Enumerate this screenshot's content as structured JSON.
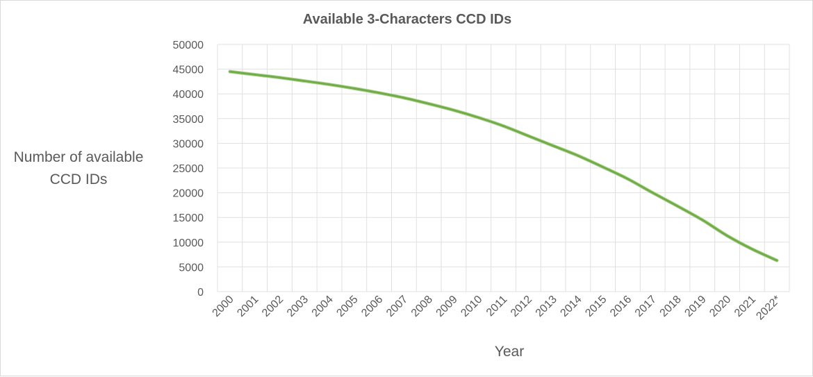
{
  "chart_data": {
    "type": "line",
    "title": "Available 3-Characters CCD IDs",
    "xlabel": "Year",
    "ylabel": [
      "Number of available",
      "CCD IDs"
    ],
    "categories": [
      "2000",
      "2001",
      "2002",
      "2003",
      "2004",
      "2005",
      "2006",
      "2007",
      "2008",
      "2009",
      "2010",
      "2011",
      "2012",
      "2013",
      "2014",
      "2015",
      "2016",
      "2017",
      "2018",
      "2019",
      "2020",
      "2021",
      "2022*"
    ],
    "series": [
      {
        "values": [
          44500,
          43900,
          43300,
          42600,
          41900,
          41100,
          40200,
          39200,
          38000,
          36700,
          35200,
          33500,
          31500,
          29500,
          27500,
          25200,
          22800,
          20000,
          17300,
          14500,
          11300,
          8600,
          6300
        ]
      }
    ],
    "ylim": [
      0,
      50000
    ],
    "yticks": [
      0,
      5000,
      10000,
      15000,
      20000,
      25000,
      30000,
      35000,
      40000,
      45000,
      50000
    ],
    "grid": true,
    "legend": "none",
    "colors": {
      "line": "#70ad47",
      "grid": "#e0e0e0",
      "text": "#595959"
    }
  }
}
